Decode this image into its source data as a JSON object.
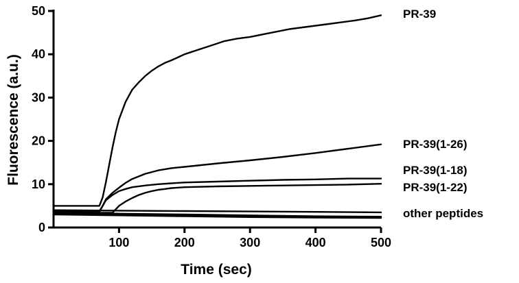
{
  "chart_data": {
    "type": "line",
    "title": "",
    "xlabel": "Time (sec)",
    "ylabel": "Fluorescence (a.u.)",
    "xlim": [
      0,
      500
    ],
    "ylim": [
      0,
      50
    ],
    "xticks": [
      100,
      200,
      300,
      400,
      500
    ],
    "yticks": [
      0,
      10,
      20,
      30,
      40,
      50
    ],
    "grid": false,
    "legend": "labels at right end of lines",
    "series": [
      {
        "name": "PR-39",
        "x": [
          0,
          70,
          75,
          80,
          85,
          90,
          95,
          100,
          110,
          120,
          130,
          140,
          150,
          160,
          170,
          180,
          190,
          200,
          220,
          240,
          260,
          280,
          300,
          320,
          340,
          360,
          380,
          400,
          420,
          440,
          460,
          480,
          500
        ],
        "y": [
          5.0,
          5.0,
          7.0,
          10.5,
          14.5,
          18.5,
          22.0,
          25.0,
          29.0,
          31.8,
          33.5,
          35.0,
          36.2,
          37.2,
          38.0,
          38.6,
          39.3,
          40.0,
          41.0,
          42.0,
          43.0,
          43.6,
          44.0,
          44.6,
          45.2,
          45.8,
          46.2,
          46.6,
          47.0,
          47.4,
          47.8,
          48.3,
          49.0
        ]
      },
      {
        "name": "PR-39(1-26)",
        "x": [
          0,
          70,
          75,
          80,
          90,
          100,
          110,
          120,
          140,
          160,
          180,
          200,
          250,
          300,
          350,
          400,
          450,
          500
        ],
        "y": [
          3.8,
          3.8,
          5.0,
          6.5,
          8.0,
          9.2,
          10.3,
          11.2,
          12.4,
          13.2,
          13.7,
          14.0,
          14.8,
          15.5,
          16.3,
          17.2,
          18.2,
          19.2
        ]
      },
      {
        "name": "PR-39(1-18)",
        "x": [
          0,
          70,
          75,
          80,
          90,
          100,
          110,
          120,
          140,
          160,
          180,
          200,
          250,
          300,
          350,
          400,
          450,
          500
        ],
        "y": [
          3.6,
          3.6,
          5.0,
          6.3,
          7.5,
          8.4,
          8.9,
          9.3,
          9.7,
          10.0,
          10.2,
          10.4,
          10.6,
          10.8,
          11.0,
          11.1,
          11.3,
          11.3
        ]
      },
      {
        "name": "PR-39(1-22)",
        "x": [
          0,
          90,
          95,
          100,
          110,
          120,
          130,
          140,
          150,
          160,
          170,
          180,
          200,
          250,
          300,
          350,
          400,
          450,
          500
        ],
        "y": [
          3.4,
          3.4,
          4.2,
          5.0,
          6.0,
          6.8,
          7.5,
          8.0,
          8.4,
          8.7,
          8.9,
          9.1,
          9.3,
          9.5,
          9.6,
          9.7,
          9.8,
          9.9,
          10.1
        ]
      },
      {
        "name": "other peptides",
        "x": [
          0,
          100,
          200,
          300,
          400,
          500
        ],
        "y": [
          4.0,
          3.9,
          3.8,
          3.7,
          3.6,
          3.5
        ]
      },
      {
        "name": "",
        "x": [
          0,
          100,
          200,
          300,
          400,
          500
        ],
        "y": [
          3.5,
          3.2,
          3.0,
          2.8,
          2.6,
          2.5
        ]
      },
      {
        "name": "",
        "x": [
          0,
          100,
          200,
          300,
          400,
          500
        ],
        "y": [
          3.2,
          3.0,
          2.8,
          2.6,
          2.4,
          2.3
        ]
      },
      {
        "name": "",
        "x": [
          0,
          100,
          200,
          300,
          400,
          500
        ],
        "y": [
          3.0,
          2.8,
          2.6,
          2.4,
          2.3,
          2.2
        ]
      }
    ]
  }
}
